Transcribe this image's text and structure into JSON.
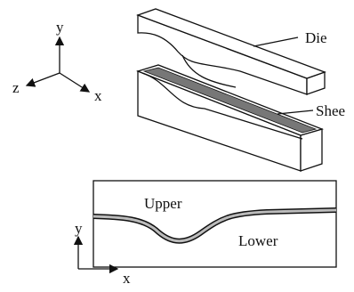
{
  "axes_3d": {
    "y": "y",
    "z": "z",
    "x": "x"
  },
  "labels": {
    "die": "Die",
    "sheet": "Shee"
  },
  "section": {
    "upper": "Upper",
    "lower": "Lower",
    "axis_y": "y",
    "axis_x": "x"
  }
}
